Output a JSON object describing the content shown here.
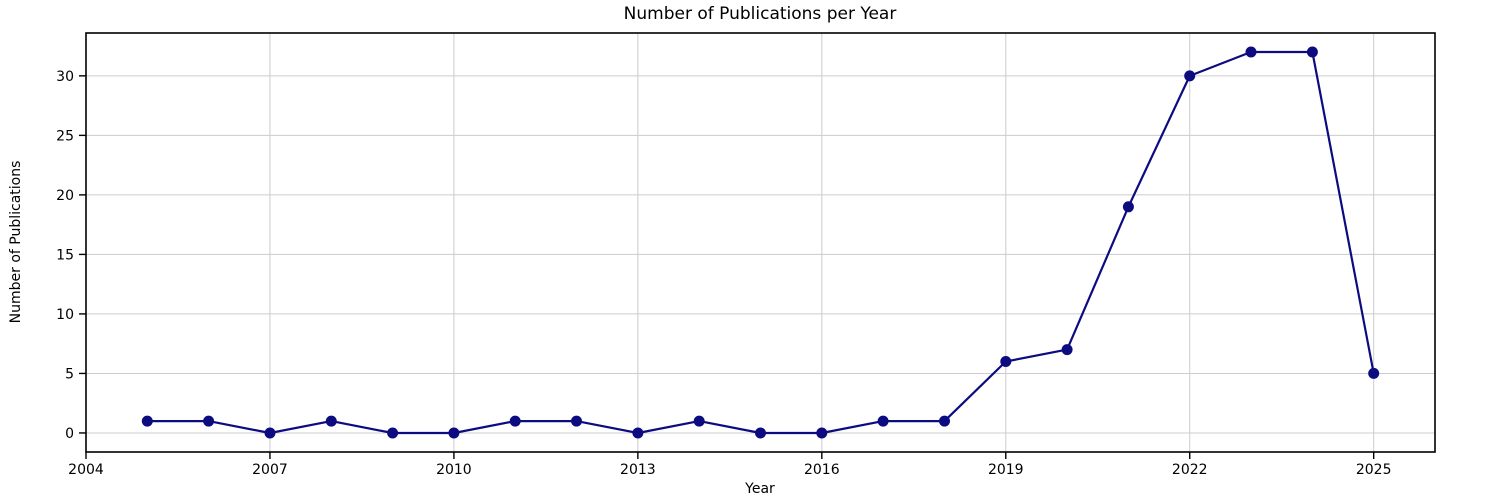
{
  "chart_data": {
    "type": "line",
    "title": "Number of Publications per Year",
    "xlabel": "Year",
    "ylabel": "Number of Publications",
    "x": [
      2005,
      2006,
      2007,
      2008,
      2009,
      2010,
      2011,
      2012,
      2013,
      2014,
      2015,
      2016,
      2017,
      2018,
      2019,
      2020,
      2021,
      2022,
      2023,
      2024,
      2025
    ],
    "values": [
      1,
      1,
      0,
      1,
      0,
      0,
      1,
      1,
      0,
      1,
      0,
      0,
      1,
      1,
      6,
      7,
      19,
      30,
      32,
      32,
      5
    ],
    "xlim": [
      2004,
      2026
    ],
    "ylim": [
      -1.6,
      33.6
    ],
    "xticks": [
      2004,
      2007,
      2010,
      2013,
      2016,
      2019,
      2022,
      2025
    ],
    "yticks": [
      0,
      5,
      10,
      15,
      20,
      25,
      30
    ],
    "grid": true,
    "legend": "none",
    "line_color": "#0c0c80",
    "marker": "circle",
    "marker_color": "#0c0c80",
    "grid_color": "#cccccc",
    "spine_color": "#000000",
    "background": "#ffffff"
  }
}
